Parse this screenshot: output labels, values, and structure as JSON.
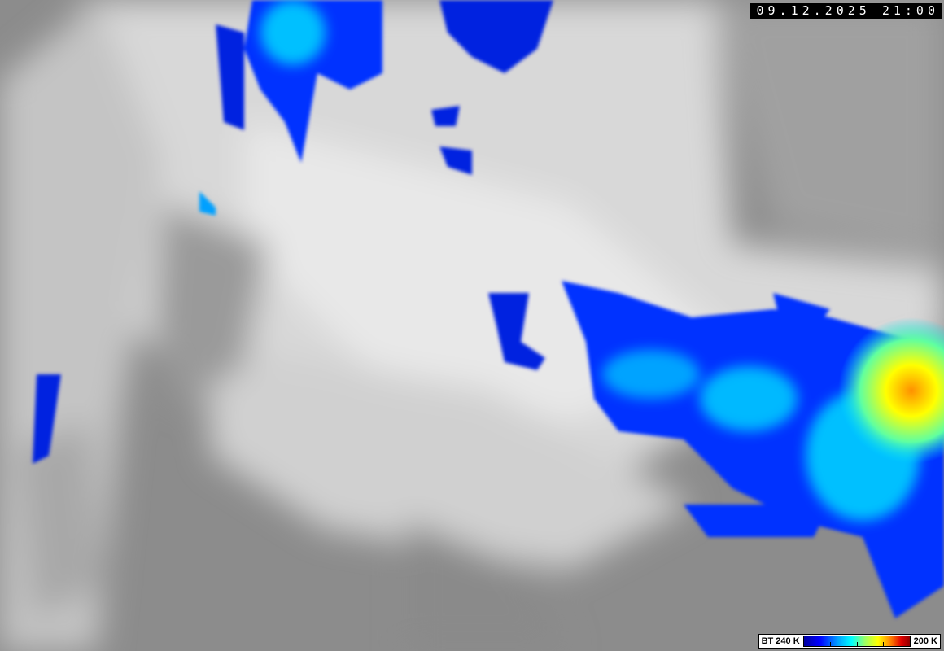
{
  "timestamp": "09.12.2025 21:00",
  "legend": {
    "min_label": "BT 240 K",
    "max_label": "200 K"
  },
  "colors": {
    "cold_blue": "#0000ff",
    "cyan": "#00e0ff",
    "yellow": "#ffff00",
    "red": "#e00000",
    "clear_gray": "#8a8a8a",
    "cloud_white": "#f0f0f0"
  }
}
